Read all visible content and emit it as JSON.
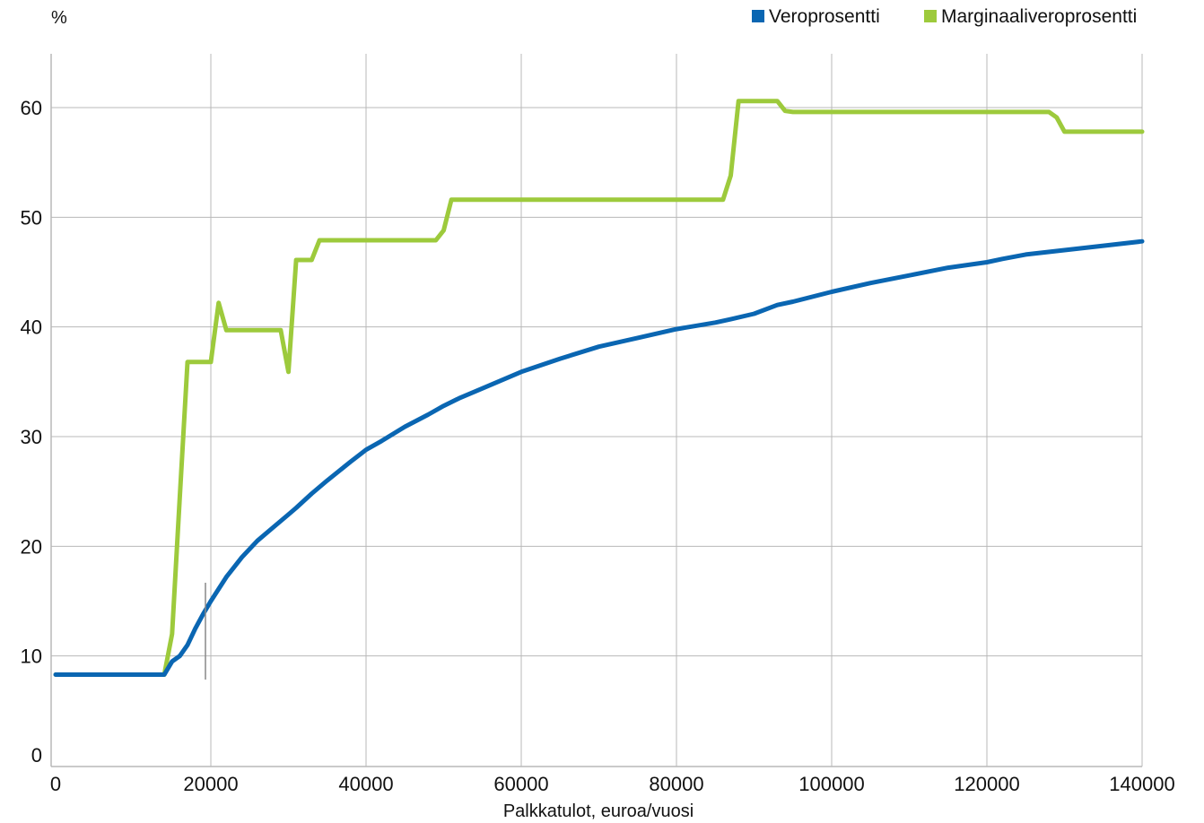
{
  "chart_data": {
    "type": "line",
    "title": "",
    "ylabel": "%",
    "xlabel": "Palkkatulot, euroa/vuosi",
    "xlim": [
      0,
      140000
    ],
    "ylim": [
      0,
      65
    ],
    "x_ticks": [
      0,
      20000,
      40000,
      60000,
      80000,
      100000,
      120000,
      140000
    ],
    "y_ticks": [
      0,
      10,
      20,
      30,
      40,
      50,
      60
    ],
    "grid": true,
    "legend_position": "top-right",
    "series": [
      {
        "name": "Veroprosentti",
        "color": "#0a66b2",
        "points": [
          [
            0,
            8.3
          ],
          [
            14000,
            8.3
          ],
          [
            15000,
            9.5
          ],
          [
            16000,
            10.0
          ],
          [
            17000,
            11.0
          ],
          [
            18000,
            12.5
          ],
          [
            19000,
            13.8
          ],
          [
            20000,
            15.0
          ],
          [
            22000,
            17.2
          ],
          [
            24000,
            19.0
          ],
          [
            26000,
            20.5
          ],
          [
            28000,
            21.7
          ],
          [
            30000,
            22.9
          ],
          [
            31000,
            23.5
          ],
          [
            33000,
            24.8
          ],
          [
            35000,
            26.0
          ],
          [
            38000,
            27.7
          ],
          [
            40000,
            28.8
          ],
          [
            42000,
            29.6
          ],
          [
            45000,
            30.9
          ],
          [
            48000,
            32.0
          ],
          [
            50000,
            32.8
          ],
          [
            52000,
            33.5
          ],
          [
            55000,
            34.4
          ],
          [
            60000,
            35.9
          ],
          [
            65000,
            37.1
          ],
          [
            70000,
            38.2
          ],
          [
            75000,
            39.0
          ],
          [
            80000,
            39.8
          ],
          [
            85000,
            40.4
          ],
          [
            87000,
            40.7
          ],
          [
            90000,
            41.2
          ],
          [
            93000,
            42.0
          ],
          [
            95000,
            42.3
          ],
          [
            100000,
            43.2
          ],
          [
            105000,
            44.0
          ],
          [
            110000,
            44.7
          ],
          [
            115000,
            45.4
          ],
          [
            120000,
            45.9
          ],
          [
            122000,
            46.2
          ],
          [
            125000,
            46.6
          ],
          [
            130000,
            47.0
          ],
          [
            135000,
            47.4
          ],
          [
            140000,
            47.8
          ]
        ]
      },
      {
        "name": "Marginaaliveroprosentti",
        "color": "#9dca3c",
        "points": [
          [
            0,
            8.3
          ],
          [
            14000,
            8.3
          ],
          [
            15000,
            12.0
          ],
          [
            16000,
            24.5
          ],
          [
            17000,
            36.8
          ],
          [
            19500,
            36.8
          ],
          [
            20000,
            36.8
          ],
          [
            21000,
            42.2
          ],
          [
            22000,
            39.7
          ],
          [
            28000,
            39.7
          ],
          [
            29000,
            39.7
          ],
          [
            30000,
            35.9
          ],
          [
            31000,
            46.1
          ],
          [
            33000,
            46.1
          ],
          [
            34000,
            47.9
          ],
          [
            49000,
            47.9
          ],
          [
            50000,
            48.8
          ],
          [
            51000,
            51.6
          ],
          [
            85000,
            51.6
          ],
          [
            86000,
            51.6
          ],
          [
            87000,
            53.8
          ],
          [
            88000,
            60.6
          ],
          [
            93000,
            60.6
          ],
          [
            94000,
            59.7
          ],
          [
            95000,
            59.6
          ],
          [
            128000,
            59.6
          ],
          [
            129000,
            59.1
          ],
          [
            130000,
            57.8
          ],
          [
            140000,
            57.8
          ]
        ]
      }
    ]
  }
}
